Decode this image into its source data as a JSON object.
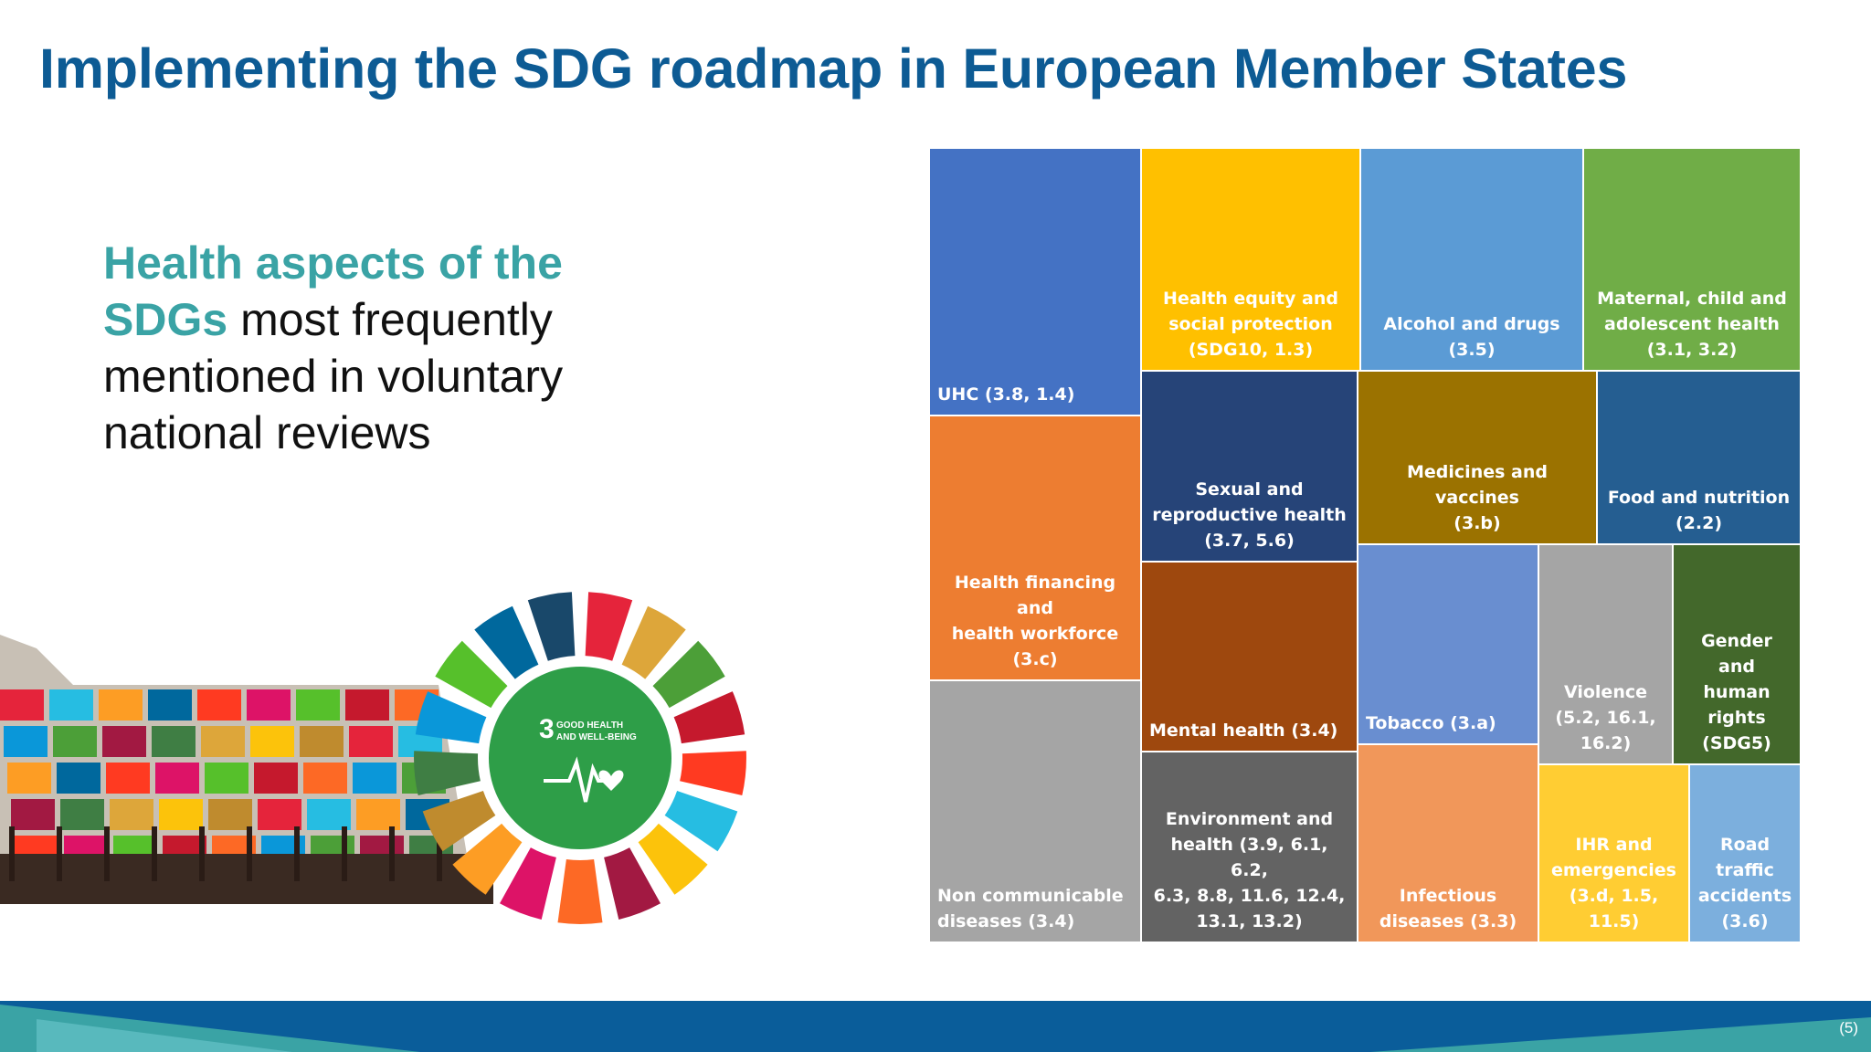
{
  "title": "Implementing the SDG roadmap in European Member States",
  "subtitle": {
    "accent_line1": "Health aspects of the",
    "accent_word": "SDGs",
    "rest_line2": " most frequently",
    "line3": "mentioned in voluntary",
    "line4": "national reviews"
  },
  "treemap": {
    "tiles": [
      {
        "label": "UHC (3.8, 1.4)",
        "color": "#4472c4"
      },
      {
        "label": "Health equity and\nsocial protection\n(SDG10, 1.3)",
        "color": "#ffc000"
      },
      {
        "label": "Alcohol and drugs\n(3.5)",
        "color": "#5b9bd5"
      },
      {
        "label": "Maternal, child and\nadolescent health\n(3.1, 3.2)",
        "color": "#70ad47"
      },
      {
        "label": "Health financing and\nhealth workforce (3.c)",
        "color": "#ed7d31"
      },
      {
        "label": "Sexual and\nreproductive health\n(3.7, 5.6)",
        "color": "#264478"
      },
      {
        "label": "Medicines and vaccines\n(3.b)",
        "color": "#9b7200"
      },
      {
        "label": "Food and nutrition\n(2.2)",
        "color": "#255e91"
      },
      {
        "label": "Mental health (3.4)",
        "color": "#9e480e"
      },
      {
        "label": "Tobacco (3.a)",
        "color": "#698ed0"
      },
      {
        "label": "Violence\n(5.2, 16.1,\n16.2)",
        "color": "#a5a5a5"
      },
      {
        "label": "Gender and\nhuman\nrights\n(SDG5)",
        "color": "#43682b"
      },
      {
        "label": "Non communicable\ndiseases (3.4)",
        "color": "#a5a5a5"
      },
      {
        "label": "Environment and\nhealth (3.9, 6.1, 6.2,\n6.3, 8.8, 11.6, 12.4,\n13.1, 13.2)",
        "color": "#636363"
      },
      {
        "label": "Infectious\ndiseases (3.3)",
        "color": "#f1975a"
      },
      {
        "label": "IHR and\nemergencies\n(3.d, 1.5, 11.5)",
        "color": "#ffcd33"
      },
      {
        "label": "Road\ntraffic\naccidents\n(3.6)",
        "color": "#7cafdd"
      }
    ]
  },
  "sdg_wheel": {
    "center_number": "3",
    "center_text_1": "GOOD HEALTH",
    "center_text_2": "AND WELL-BEING"
  },
  "page_number": "(5)"
}
